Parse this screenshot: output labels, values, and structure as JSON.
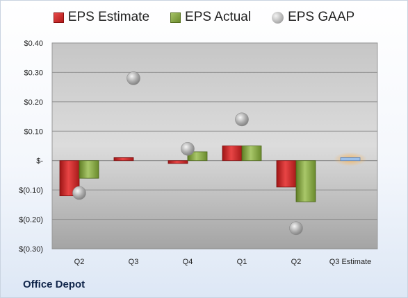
{
  "company": "Office Depot",
  "colors": {
    "estimate": "#c62424",
    "actual": "#7f9e3c",
    "gaap": "#a8a8a8",
    "q3_estimate_highlight": "#f0a040",
    "q3_estimate_bar": "#8fb4e0"
  },
  "chart_data": {
    "type": "bar",
    "categories": [
      "Q2",
      "Q3",
      "Q4",
      "Q1",
      "Q2",
      "Q3 Estimate"
    ],
    "series": [
      {
        "name": "EPS Estimate",
        "values": [
          -0.12,
          0.01,
          -0.01,
          0.05,
          -0.09,
          0.01
        ]
      },
      {
        "name": "EPS Actual",
        "values": [
          -0.06,
          null,
          0.03,
          0.05,
          -0.14,
          null
        ]
      },
      {
        "name": "EPS GAAP",
        "values": [
          -0.11,
          0.28,
          0.04,
          0.14,
          -0.23,
          null
        ]
      }
    ],
    "y_ticks": [
      "$0.40",
      "$0.30",
      "$0.20",
      "$0.10",
      "$-",
      "$(0.10)",
      "$(0.20)",
      "$(0.30)"
    ],
    "ylim": [
      -0.3,
      0.4
    ],
    "legend_position": "top-center",
    "grid": true
  }
}
